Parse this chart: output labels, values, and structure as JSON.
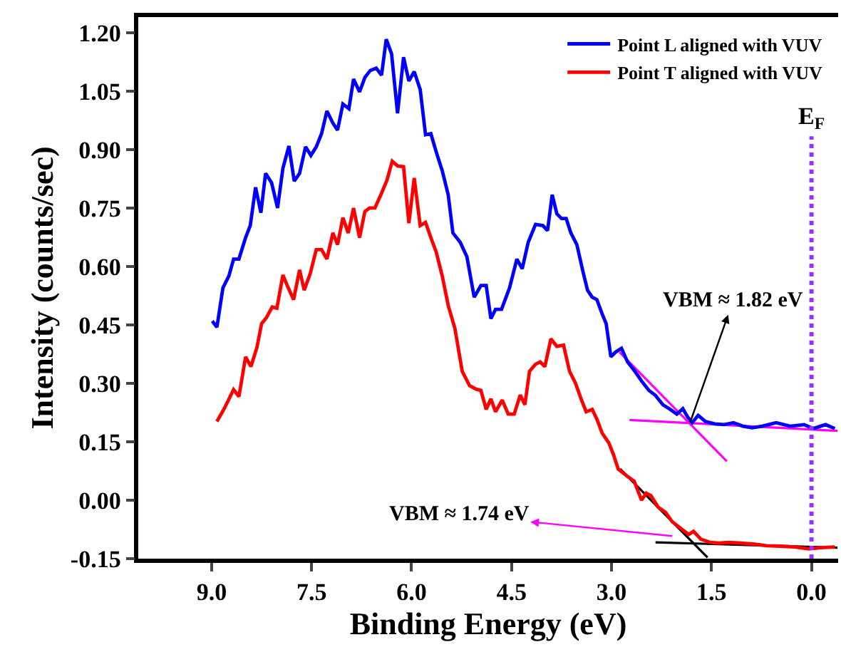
{
  "chart_data": {
    "type": "line",
    "xlabel": "Binding Energy (eV)",
    "ylabel": "Intensity (counts/sec)",
    "xlim": [
      10.1,
      -0.4
    ],
    "ylim": [
      -0.15,
      1.24
    ],
    "xticks": [
      {
        "value": 9.0,
        "label": "9.0"
      },
      {
        "value": 7.5,
        "label": "7.5"
      },
      {
        "value": 6.0,
        "label": "6.0"
      },
      {
        "value": 4.5,
        "label": "4.5"
      },
      {
        "value": 3.0,
        "label": "3.0"
      },
      {
        "value": 1.5,
        "label": "1.5"
      },
      {
        "value": 0.0,
        "label": "0.0"
      }
    ],
    "yticks": [
      {
        "value": -0.15,
        "label": "-0.15"
      },
      {
        "value": 0.0,
        "label": "0.00"
      },
      {
        "value": 0.15,
        "label": "0.15"
      },
      {
        "value": 0.3,
        "label": "0.30"
      },
      {
        "value": 0.45,
        "label": "0.45"
      },
      {
        "value": 0.6,
        "label": "0.60"
      },
      {
        "value": 0.75,
        "label": "0.75"
      },
      {
        "value": 0.9,
        "label": "0.90"
      },
      {
        "value": 1.05,
        "label": "1.05"
      },
      {
        "value": 1.2,
        "label": "1.20"
      }
    ],
    "legend": "top right",
    "marker": "none",
    "line_style": "solid",
    "series": [
      {
        "name": "Point L aligned with VUV",
        "color": "#0000ff",
        "x": [
          8.99,
          8.92,
          8.83,
          8.74,
          8.67,
          8.59,
          8.49,
          8.42,
          8.34,
          8.26,
          8.19,
          8.1,
          8.01,
          7.93,
          7.84,
          7.76,
          7.68,
          7.59,
          7.51,
          7.43,
          7.35,
          7.27,
          7.18,
          7.11,
          7.03,
          6.94,
          6.87,
          6.78,
          6.7,
          6.62,
          6.53,
          6.45,
          6.38,
          6.3,
          6.21,
          6.12,
          6.04,
          5.96,
          5.87,
          5.79,
          5.71,
          5.63,
          5.54,
          5.45,
          5.38,
          5.27,
          5.17,
          5.06,
          4.96,
          4.88,
          4.81,
          4.74,
          4.65,
          4.53,
          4.42,
          4.34,
          4.25,
          4.14,
          4.03,
          3.96,
          3.89,
          3.82,
          3.75,
          3.68,
          3.61,
          3.52,
          3.43,
          3.36,
          3.29,
          3.22,
          3.14,
          3.08,
          3.01,
          2.94,
          2.85,
          2.76,
          2.65,
          2.55,
          2.44,
          2.34,
          2.23,
          2.12,
          2.02,
          1.93,
          1.86,
          1.79,
          1.7,
          1.59,
          1.45,
          1.31,
          1.17,
          1.03,
          0.89,
          0.74,
          0.53,
          0.32,
          0.11,
          -0.03,
          -0.21,
          -0.35
        ],
        "values": [
          0.46,
          0.444,
          0.545,
          0.576,
          0.619,
          0.619,
          0.674,
          0.705,
          0.803,
          0.738,
          0.839,
          0.815,
          0.75,
          0.852,
          0.909,
          0.819,
          0.839,
          0.907,
          0.885,
          0.907,
          0.941,
          0.999,
          0.968,
          0.95,
          1.017,
          1.005,
          1.081,
          1.048,
          1.085,
          1.103,
          1.109,
          1.091,
          1.183,
          1.146,
          0.993,
          1.137,
          1.076,
          1.1,
          1.054,
          0.938,
          0.941,
          0.894,
          0.846,
          0.784,
          0.686,
          0.662,
          0.625,
          0.521,
          0.551,
          0.551,
          0.466,
          0.49,
          0.49,
          0.545,
          0.619,
          0.594,
          0.662,
          0.708,
          0.705,
          0.692,
          0.784,
          0.735,
          0.723,
          0.723,
          0.686,
          0.656,
          0.588,
          0.539,
          0.521,
          0.515,
          0.478,
          0.453,
          0.368,
          0.38,
          0.39,
          0.355,
          0.331,
          0.306,
          0.282,
          0.269,
          0.245,
          0.233,
          0.221,
          0.235,
          0.214,
          0.199,
          0.218,
          0.202,
          0.196,
          0.194,
          0.199,
          0.19,
          0.186,
          0.19,
          0.199,
          0.19,
          0.194,
          0.184,
          0.194,
          0.184
        ]
      },
      {
        "name": "Point T aligned with VUV",
        "color": "#ff0000",
        "x": [
          8.92,
          8.81,
          8.67,
          8.59,
          8.49,
          8.41,
          8.32,
          8.25,
          8.18,
          8.09,
          8.02,
          7.93,
          7.86,
          7.77,
          7.68,
          7.61,
          7.52,
          7.43,
          7.35,
          7.27,
          7.18,
          7.11,
          7.03,
          6.95,
          6.87,
          6.78,
          6.7,
          6.63,
          6.55,
          6.46,
          6.37,
          6.29,
          6.21,
          6.12,
          6.04,
          5.96,
          5.87,
          5.79,
          5.71,
          5.63,
          5.54,
          5.45,
          5.35,
          5.24,
          5.13,
          5.03,
          4.96,
          4.88,
          4.81,
          4.74,
          4.64,
          4.55,
          4.46,
          4.37,
          4.3,
          4.23,
          4.14,
          4.07,
          4.0,
          3.91,
          3.82,
          3.72,
          3.63,
          3.54,
          3.45,
          3.38,
          3.29,
          3.22,
          3.14,
          3.04,
          2.97,
          2.9,
          2.76,
          2.66,
          2.55,
          2.48,
          2.41,
          2.3,
          2.19,
          2.09,
          1.95,
          1.84,
          1.77,
          1.66,
          1.52,
          1.38,
          1.24,
          1.06,
          0.85,
          0.67,
          0.46,
          0.25,
          0.04,
          -0.14,
          -0.35
        ],
        "values": [
          0.202,
          0.235,
          0.284,
          0.266,
          0.368,
          0.343,
          0.392,
          0.453,
          0.468,
          0.496,
          0.493,
          0.578,
          0.549,
          0.515,
          0.591,
          0.539,
          0.582,
          0.643,
          0.643,
          0.619,
          0.686,
          0.656,
          0.725,
          0.686,
          0.75,
          0.674,
          0.741,
          0.75,
          0.75,
          0.784,
          0.821,
          0.87,
          0.858,
          0.856,
          0.711,
          0.827,
          0.705,
          0.713,
          0.674,
          0.637,
          0.576,
          0.5,
          0.441,
          0.331,
          0.294,
          0.285,
          0.282,
          0.233,
          0.26,
          0.227,
          0.257,
          0.221,
          0.221,
          0.27,
          0.245,
          0.331,
          0.349,
          0.355,
          0.343,
          0.414,
          0.395,
          0.398,
          0.331,
          0.3,
          0.257,
          0.227,
          0.233,
          0.208,
          0.172,
          0.147,
          0.117,
          0.08,
          0.061,
          0.049,
          0.0,
          0.018,
          0.012,
          -0.018,
          -0.031,
          -0.055,
          -0.074,
          -0.088,
          -0.08,
          -0.1,
          -0.108,
          -0.11,
          -0.108,
          -0.11,
          -0.113,
          -0.117,
          -0.118,
          -0.12,
          -0.125,
          -0.122,
          -0.12
        ]
      },
      {
        "color": "#ff00ff",
        "x": [
          2.88,
          1.27
        ],
        "values": [
          0.38,
          0.1
        ]
      },
      {
        "color": "#ff00ff",
        "x": [
          2.73,
          -0.39
        ],
        "values": [
          0.206,
          0.178
        ]
      },
      {
        "color": "#000000",
        "x": [
          2.87,
          1.56
        ],
        "values": [
          0.08,
          -0.147
        ]
      },
      {
        "color": "#000000",
        "x": [
          2.34,
          -0.39
        ],
        "values": [
          -0.108,
          -0.122
        ]
      }
    ],
    "ref_lines": [
      {
        "axis": "x",
        "value": 0.0,
        "label": "E$_{F}$",
        "color": "#9933ff",
        "line_style": "dotted"
      }
    ],
    "annotations": [
      {
        "text": "VBM ≈ 1.82 eV",
        "x": 1.82,
        "y": 0.2
      },
      {
        "text": "VBM ≈ 1.74 eV",
        "x": 2.09,
        "y": -0.092
      }
    ]
  }
}
